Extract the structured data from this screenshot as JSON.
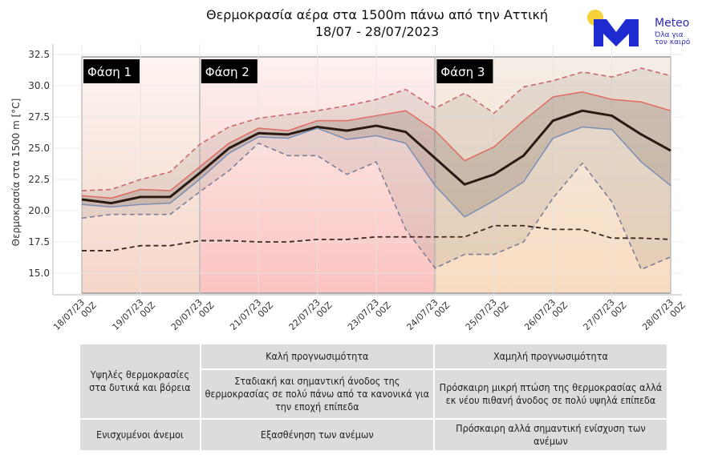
{
  "title": {
    "line1": "Θερμοκρασία αέρα στα 1500m πάνω από την Αττική",
    "line2": "18/07 - 28/07/2023"
  },
  "logo": {
    "name": "Meteo",
    "tagline1": "Όλα για",
    "tagline2": "τον καιρό",
    "colors": {
      "blue": "#1d2bd0",
      "sun": "#f5d13a"
    }
  },
  "chart_data": {
    "type": "line",
    "ylabel": "Θερμοκρασία στα 1500 m [°C]",
    "ylim": [
      13.5,
      33.0
    ],
    "yticks": [
      15.0,
      17.5,
      20.0,
      22.5,
      25.0,
      27.5,
      30.0,
      32.5
    ],
    "ytick_labels": [
      "15.0",
      "17.5",
      "20.0",
      "22.5",
      "25.0",
      "27.5",
      "30.0",
      "32.5"
    ],
    "x_ticks": [
      {
        "l1": "18/07/23",
        "l2": "00Z"
      },
      {
        "l1": "19/07/23",
        "l2": "00Z"
      },
      {
        "l1": "20/07/23",
        "l2": "00Z"
      },
      {
        "l1": "21/07/23",
        "l2": "00Z"
      },
      {
        "l1": "22/07/23",
        "l2": "00Z"
      },
      {
        "l1": "23/07/23",
        "l2": "00Z"
      },
      {
        "l1": "24/07/23",
        "l2": "00Z"
      },
      {
        "l1": "25/07/23",
        "l2": "00Z"
      },
      {
        "l1": "26/07/23",
        "l2": "00Z"
      },
      {
        "l1": "27/07/23",
        "l2": "00Z"
      },
      {
        "l1": "28/07/23",
        "l2": "00Z"
      }
    ],
    "x": [
      "18/07 00Z",
      "18/07 12Z",
      "19/07 00Z",
      "19/07 12Z",
      "20/07 00Z",
      "20/07 12Z",
      "21/07 00Z",
      "21/07 12Z",
      "22/07 00Z",
      "22/07 12Z",
      "23/07 00Z",
      "23/07 12Z",
      "24/07 00Z",
      "24/07 12Z",
      "25/07 00Z",
      "25/07 12Z",
      "26/07 00Z",
      "26/07 12Z",
      "27/07 00Z",
      "27/07 12Z",
      "28/07 00Z"
    ],
    "grid": true,
    "series": [
      {
        "role": "max",
        "style": "dashed",
        "color": "#c96a6a",
        "values": [
          21.6,
          21.7,
          22.5,
          23.1,
          25.3,
          26.7,
          27.4,
          27.7,
          28.0,
          28.4,
          28.9,
          29.7,
          28.2,
          29.4,
          27.8,
          29.9,
          30.4,
          31.1,
          30.7,
          31.4,
          30.8
        ]
      },
      {
        "role": "upper",
        "style": "solid",
        "color": "#e06b5e",
        "values": [
          21.2,
          21.0,
          21.7,
          21.6,
          23.5,
          25.4,
          26.6,
          26.4,
          27.2,
          27.2,
          27.6,
          28.0,
          26.4,
          24.0,
          25.1,
          27.2,
          29.1,
          29.5,
          28.9,
          28.7,
          28.0
        ]
      },
      {
        "role": "mean",
        "style": "solid-thick",
        "color": "#2a1a14",
        "values": [
          20.9,
          20.6,
          21.1,
          21.1,
          23.0,
          25.0,
          26.2,
          26.1,
          26.7,
          26.4,
          26.8,
          26.3,
          24.2,
          22.1,
          22.9,
          24.4,
          27.2,
          28.0,
          27.6,
          26.1,
          24.8
        ]
      },
      {
        "role": "lower",
        "style": "solid",
        "color": "#7a8fb5",
        "values": [
          20.5,
          20.3,
          20.5,
          20.6,
          22.5,
          24.6,
          25.9,
          25.8,
          26.6,
          25.7,
          26.0,
          25.4,
          22.0,
          19.5,
          20.8,
          22.3,
          25.8,
          26.7,
          26.5,
          23.9,
          22.0
        ]
      },
      {
        "role": "min",
        "style": "dashed",
        "color": "#7f7f96",
        "values": [
          19.4,
          19.7,
          19.7,
          19.7,
          21.5,
          23.2,
          25.4,
          24.4,
          24.4,
          22.9,
          23.9,
          18.5,
          15.4,
          16.5,
          16.5,
          17.5,
          21.0,
          23.8,
          20.7,
          15.3,
          16.3
        ]
      },
      {
        "role": "climatology",
        "style": "dashed-thick",
        "color": "#3a2a22",
        "values": [
          16.8,
          16.8,
          17.2,
          17.2,
          17.6,
          17.6,
          17.5,
          17.5,
          17.7,
          17.7,
          17.9,
          17.9,
          17.9,
          17.9,
          18.8,
          18.8,
          18.5,
          18.5,
          17.8,
          17.8,
          17.7
        ]
      }
    ],
    "phases": [
      {
        "label": "Φάση 1",
        "start": "18/07 00Z",
        "end": "20/07 00Z",
        "color_top": "#fdf4f1",
        "color_bottom": "#f5d6c8"
      },
      {
        "label": "Φάση 2",
        "start": "20/07 00Z",
        "end": "24/07 00Z",
        "color_top": "#fdf1ef",
        "color_bottom": "#fbc3c0"
      },
      {
        "label": "Φάση 3",
        "start": "24/07 00Z",
        "end": "28/07 00Z",
        "color_top": "#f5ede7",
        "color_bottom": "#f8dcc0"
      }
    ]
  },
  "table": {
    "phase1_temp": "Υψηλές θερμοκρασίες στα δυτικά και βόρεια",
    "phase1_wind": "Ενισχυμένοι άνεμοι",
    "phase2_predict": "Καλή προγνωσιμότητα",
    "phase2_temp": "Σταδιακή και σημαντική άνοδος της θερμοκρασίας σε πολύ πάνω από τα κανονικά για την εποχή επίπεδα",
    "phase2_wind": "Εξασθένηση των ανέμων",
    "phase3_predict": "Χαμηλή προγνωσιμότητα",
    "phase3_temp": "Πρόσκαιρη μικρή πτώση της θερμοκρασίας αλλά εκ νέου πιθανή άνοδος σε πολύ υψηλά επίπεδα",
    "phase3_wind": "Πρόσκαιρη αλλά σημαντική ενίσχυση των ανέμων"
  }
}
